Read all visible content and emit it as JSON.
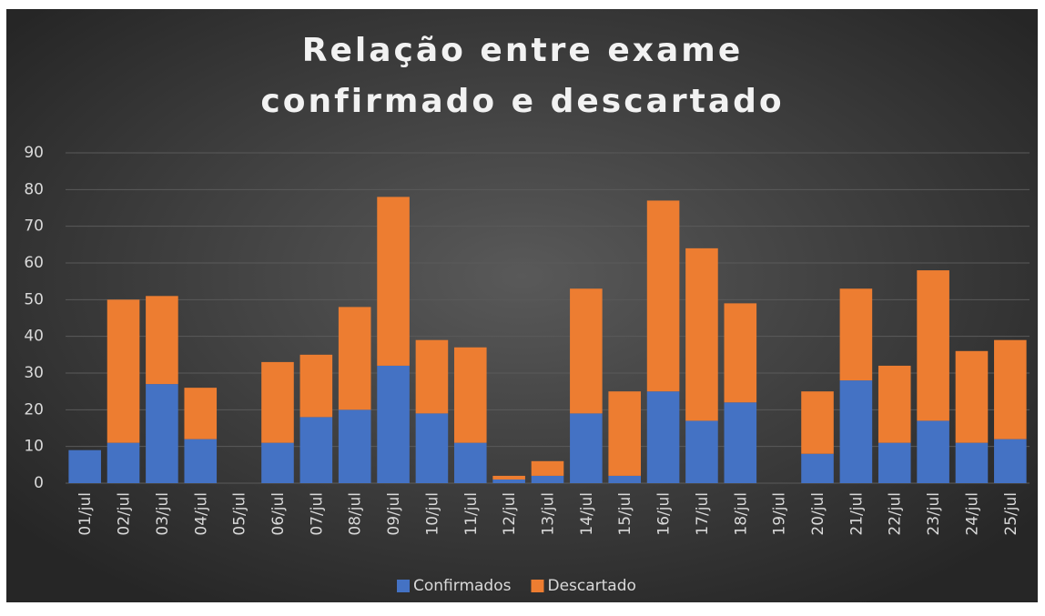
{
  "chart_data": {
    "type": "stacked_bar",
    "title": "Relação entre exame confirmado e descartado",
    "categories": [
      "01/jul",
      "02/jul",
      "03/jul",
      "04/jul",
      "05/jul",
      "06/jul",
      "07/jul",
      "08/jul",
      "09/jul",
      "10/jul",
      "11/jul",
      "12/jul",
      "13/jul",
      "14/jul",
      "15/jul",
      "16/jul",
      "17/jul",
      "18/jul",
      "19/jul",
      "20/jul",
      "21/jul",
      "22/jul",
      "23/jul",
      "24/jul",
      "25/jul"
    ],
    "series": [
      {
        "name": "Confirmados",
        "color": "#4472c4",
        "values": [
          9,
          11,
          27,
          12,
          0,
          11,
          18,
          20,
          32,
          19,
          11,
          1,
          2,
          19,
          2,
          25,
          17,
          22,
          0,
          8,
          28,
          11,
          17,
          11,
          12
        ]
      },
      {
        "name": "Descartado",
        "color": "#ed7d31",
        "values": [
          0,
          39,
          24,
          14,
          0,
          22,
          17,
          28,
          46,
          20,
          26,
          1,
          4,
          34,
          23,
          52,
          47,
          27,
          0,
          17,
          25,
          21,
          41,
          25,
          27
        ]
      }
    ],
    "ylim": [
      0,
      90
    ],
    "yticks": [
      0,
      10,
      20,
      30,
      40,
      50,
      60,
      70,
      80,
      90
    ],
    "grid": true,
    "legend": "bottom"
  }
}
